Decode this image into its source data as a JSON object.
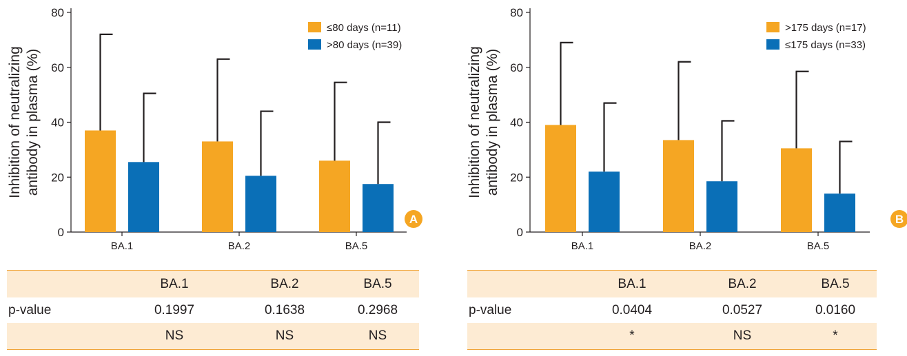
{
  "panels": [
    {
      "badge": "A",
      "chart_data": {
        "type": "bar",
        "categories": [
          "BA.1",
          "BA.2",
          "BA.5"
        ],
        "ylabel": [
          "Inhibition of neutralizing",
          "antibody in plasma (%)"
        ],
        "ylim": [
          0,
          80
        ],
        "yticks": [
          0,
          20,
          40,
          60,
          80
        ],
        "legend_position": "top-right",
        "series": [
          {
            "name": "≤80 days (n=11)",
            "color": "#f5a623",
            "values": [
              37,
              33,
              26
            ],
            "error_upper": [
              72,
              63,
              54.5
            ]
          },
          {
            "name": ">80 days (n=39)",
            "color": "#0a6fb7",
            "values": [
              25.5,
              20.5,
              17.5
            ],
            "error_upper": [
              50.5,
              44,
              40
            ]
          }
        ]
      },
      "table": {
        "headers": [
          "",
          "BA.1",
          "BA.2",
          "BA.5"
        ],
        "rows": [
          [
            "p-value",
            "0.1997",
            "0.1638",
            "0.2968"
          ],
          [
            "",
            "NS",
            "NS",
            "NS"
          ]
        ]
      }
    },
    {
      "badge": "B",
      "chart_data": {
        "type": "bar",
        "categories": [
          "BA.1",
          "BA.2",
          "BA.5"
        ],
        "ylabel": [
          "Inhibition of neutralizing",
          "antibody in plasma (%)"
        ],
        "ylim": [
          0,
          80
        ],
        "yticks": [
          0,
          20,
          40,
          60,
          80
        ],
        "legend_position": "top-right",
        "series": [
          {
            "name": ">175 days (n=17)",
            "color": "#f5a623",
            "values": [
              39,
              33.5,
              30.5
            ],
            "error_upper": [
              69,
              62,
              58.5
            ]
          },
          {
            "name": "≤175 days (n=33)",
            "color": "#0a6fb7",
            "values": [
              22,
              18.5,
              14
            ],
            "error_upper": [
              47,
              40.5,
              33
            ]
          }
        ]
      },
      "table": {
        "headers": [
          "",
          "BA.1",
          "BA.2",
          "BA.5"
        ],
        "rows": [
          [
            "p-value",
            "0.0404",
            "0.0527",
            "0.0160"
          ],
          [
            "",
            "*",
            "NS",
            "*"
          ]
        ]
      }
    }
  ],
  "colors": {
    "badge": "#f5a623",
    "table_fill": "#fdebd3",
    "table_rule": "#f0a437",
    "axis": "#231f20"
  }
}
